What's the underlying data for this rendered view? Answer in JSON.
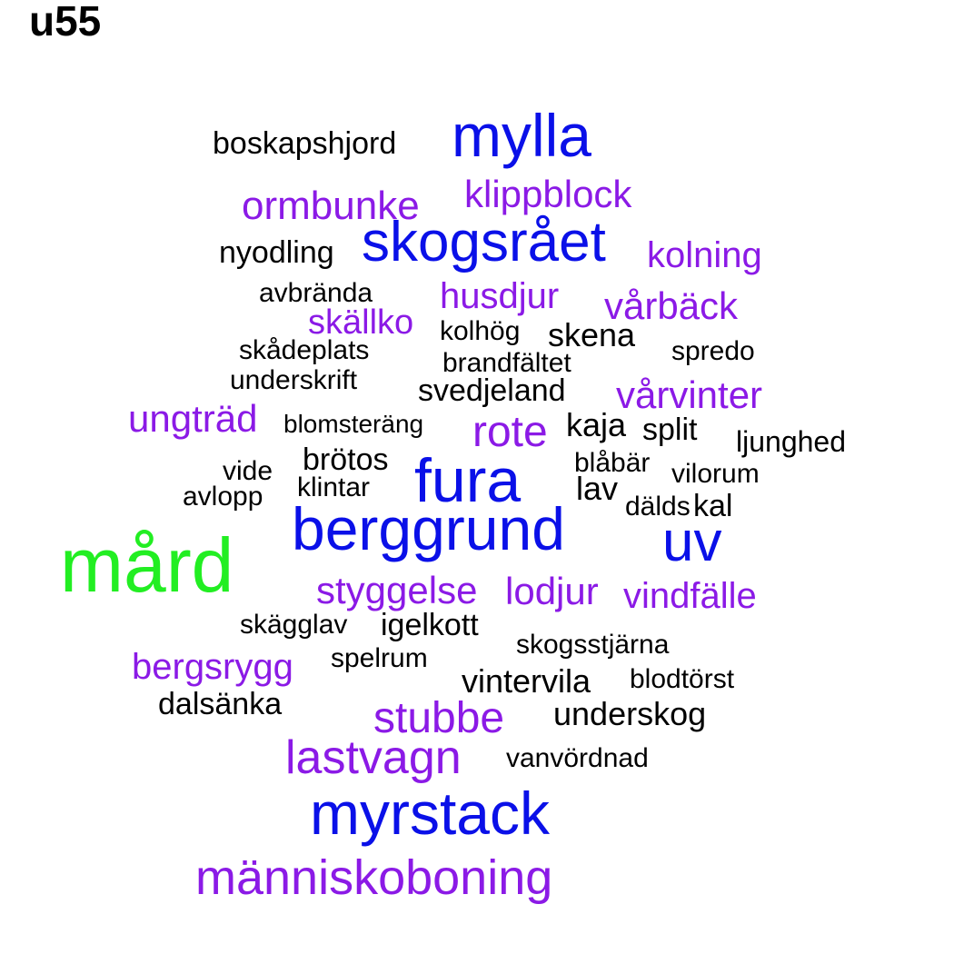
{
  "title": "u55",
  "colors": {
    "black": "#000000",
    "purple": "#8B1AE6",
    "blue": "#0A10E8",
    "green": "#22EE22"
  },
  "words": [
    {
      "text": "boskapshjord",
      "color": "black"
    },
    {
      "text": "mylla",
      "color": "blue"
    },
    {
      "text": "ormbunke",
      "color": "purple"
    },
    {
      "text": "klippblock",
      "color": "purple"
    },
    {
      "text": "nyodling",
      "color": "black"
    },
    {
      "text": "skogsrået",
      "color": "blue"
    },
    {
      "text": "kolning",
      "color": "purple"
    },
    {
      "text": "avbrända",
      "color": "black"
    },
    {
      "text": "husdjur",
      "color": "purple"
    },
    {
      "text": "vårbäck",
      "color": "purple"
    },
    {
      "text": "skällko",
      "color": "purple"
    },
    {
      "text": "kolhög",
      "color": "black"
    },
    {
      "text": "skena",
      "color": "black"
    },
    {
      "text": "skådeplats",
      "color": "black"
    },
    {
      "text": "spredo",
      "color": "black"
    },
    {
      "text": "brandfältet",
      "color": "black"
    },
    {
      "text": "underskrift",
      "color": "black"
    },
    {
      "text": "svedjeland",
      "color": "black"
    },
    {
      "text": "vårvinter",
      "color": "purple"
    },
    {
      "text": "ungträd",
      "color": "purple"
    },
    {
      "text": "blomsteräng",
      "color": "black"
    },
    {
      "text": "rote",
      "color": "purple"
    },
    {
      "text": "kaja",
      "color": "black"
    },
    {
      "text": "split",
      "color": "black"
    },
    {
      "text": "ljunghed",
      "color": "black"
    },
    {
      "text": "brötos",
      "color": "black"
    },
    {
      "text": "fura",
      "color": "blue"
    },
    {
      "text": "blåbär",
      "color": "black"
    },
    {
      "text": "vilorum",
      "color": "black"
    },
    {
      "text": "vide",
      "color": "black"
    },
    {
      "text": "klintar",
      "color": "black"
    },
    {
      "text": "lav",
      "color": "black"
    },
    {
      "text": "avlopp",
      "color": "black"
    },
    {
      "text": "dälds",
      "color": "black"
    },
    {
      "text": "kal",
      "color": "black"
    },
    {
      "text": "berggrund",
      "color": "blue"
    },
    {
      "text": "uv",
      "color": "blue"
    },
    {
      "text": "mård",
      "color": "green"
    },
    {
      "text": "styggelse",
      "color": "purple"
    },
    {
      "text": "lodjur",
      "color": "purple"
    },
    {
      "text": "vindfälle",
      "color": "purple"
    },
    {
      "text": "skägglav",
      "color": "black"
    },
    {
      "text": "igelkott",
      "color": "black"
    },
    {
      "text": "skogsstjärna",
      "color": "black"
    },
    {
      "text": "bergsrygg",
      "color": "purple"
    },
    {
      "text": "spelrum",
      "color": "black"
    },
    {
      "text": "vintervila",
      "color": "black"
    },
    {
      "text": "blodtörst",
      "color": "black"
    },
    {
      "text": "dalsänka",
      "color": "black"
    },
    {
      "text": "stubbe",
      "color": "purple"
    },
    {
      "text": "underskog",
      "color": "black"
    },
    {
      "text": "lastvagn",
      "color": "purple"
    },
    {
      "text": "vanvördnad",
      "color": "black"
    },
    {
      "text": "myrstack",
      "color": "blue"
    },
    {
      "text": "människoboning",
      "color": "purple"
    }
  ]
}
